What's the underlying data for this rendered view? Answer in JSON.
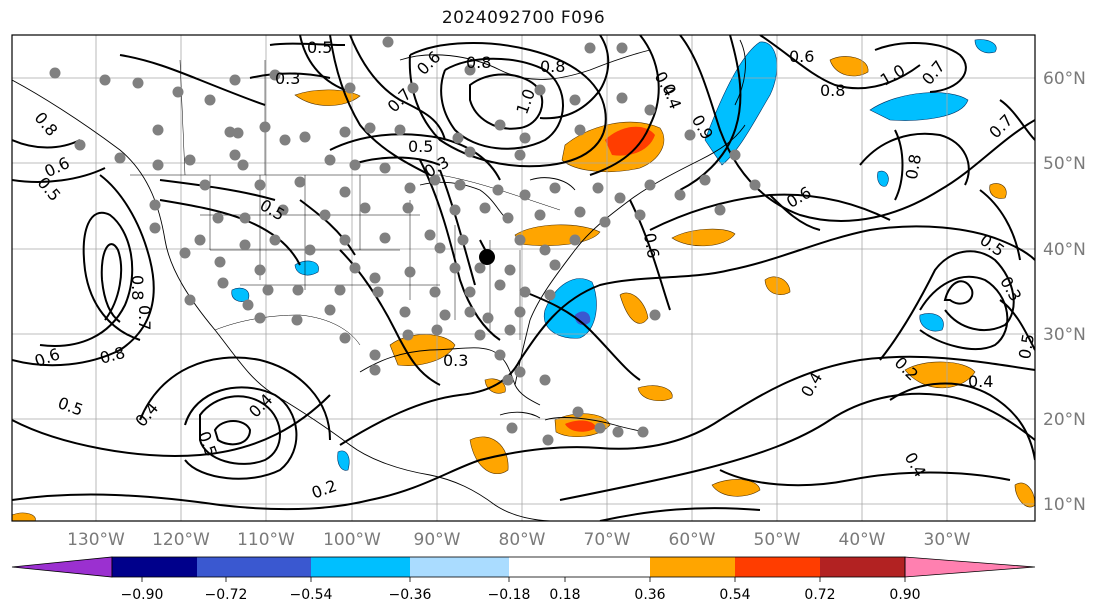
{
  "title": "2024092700 F096",
  "longitude_labels": [
    "130°W",
    "120°W",
    "110°W",
    "100°W",
    "90°W",
    "80°W",
    "70°W",
    "60°W",
    "50°W",
    "40°W",
    "30°W"
  ],
  "latitude_labels": [
    "60°N",
    "50°N",
    "40°N",
    "30°N",
    "20°N",
    "10°N"
  ],
  "contour_labels": [
    "0.5",
    "0.3",
    "0.6",
    "0.8",
    "1.0",
    "0.4",
    "0.7",
    "0.5",
    "0.8",
    "0.6",
    "1.0",
    "0.7",
    "0.8",
    "0.6",
    "0.7",
    "0.8",
    "0.5",
    "0.6",
    "0.5",
    "0.8",
    "0.7",
    "0.6",
    "0.8",
    "0.5",
    "0.4",
    "0.5",
    "0.4",
    "0.2",
    "0.3",
    "0.6",
    "0.5",
    "0.4",
    "0.3",
    "0.4",
    "0.5",
    "0.4",
    "0.4",
    "0.3",
    "0.8",
    "0.2",
    "0.9"
  ],
  "colorbar": {
    "ticks": [
      "−0.90",
      "−0.72",
      "−0.54",
      "−0.36",
      "−0.18",
      "0.18",
      "0.36",
      "0.54",
      "0.72",
      "0.90"
    ],
    "colors": [
      "#9b30d0",
      "#00008b",
      "#3a58d0",
      "#00bfff",
      "#aadcff",
      "#ffffff",
      "#ffe680",
      "#ffa500",
      "#ff3d00",
      "#b22222",
      "#ff80b0"
    ]
  },
  "colors": {
    "station_marker": "#808080",
    "contour": "#000000",
    "grid": "#a0a0a0",
    "frame": "#000000"
  }
}
